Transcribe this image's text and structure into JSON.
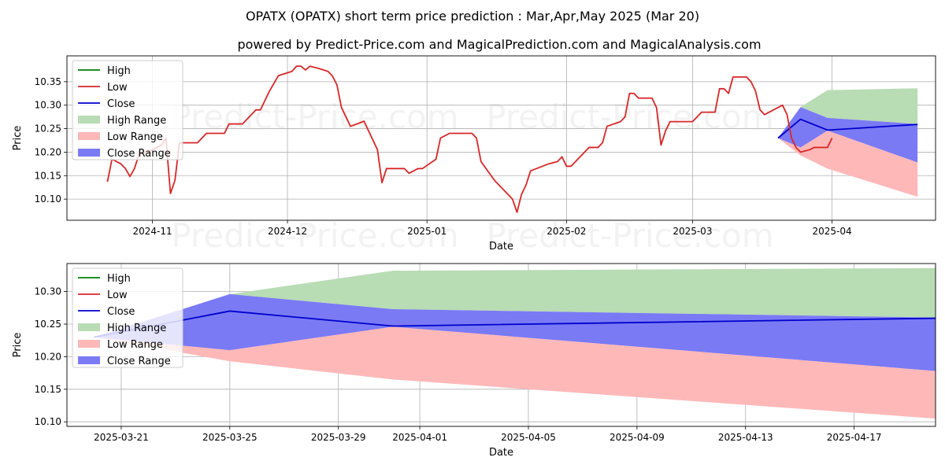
{
  "title": "OPATX (OPATX) short term price prediction : Mar,Apr,May 2025 (Mar 20)",
  "subtitle": "powered by Predict-Price.com and MagicalPrediction.com and MagicalAnalysis.com",
  "watermark": "Predict-Price.com",
  "colors": {
    "high": "#008000",
    "low": "#d62728",
    "close": "#0000cc",
    "high_range": "#b8dcb4",
    "low_range": "#ffb8b8",
    "close_range": "#7a7af5"
  },
  "chart_data": [
    {
      "type": "line",
      "xlabel": "Date",
      "ylabel": "Price",
      "xlim": [
        "2024-10-13",
        "2025-04-24"
      ],
      "ylim": [
        10.055,
        10.405
      ],
      "xticks": [
        "2024-11-01",
        "2024-12-01",
        "2025-01-01",
        "2025-02-01",
        "2025-03-01",
        "2025-04-01"
      ],
      "xtick_labels": [
        "2024-11",
        "2024-12",
        "2025-01",
        "2025-02",
        "2025-03",
        "2025-04"
      ],
      "yticks": [
        10.1,
        10.15,
        10.2,
        10.25,
        10.3,
        10.35
      ],
      "ytick_labels": [
        "10.10",
        "10.15",
        "10.20",
        "10.25",
        "10.30",
        "10.35"
      ],
      "grid": true,
      "legend_placement": "top-left",
      "legend": [
        "High",
        "Low",
        "Close",
        "High Range",
        "Low Range",
        "Close Range"
      ],
      "history_low": [
        [
          "2024-10-22",
          10.137
        ],
        [
          "2024-10-23",
          10.185
        ],
        [
          "2024-10-24",
          10.18
        ],
        [
          "2024-10-25",
          10.175
        ],
        [
          "2024-10-26",
          10.165
        ],
        [
          "2024-10-27",
          10.148
        ],
        [
          "2024-10-28",
          10.165
        ],
        [
          "2024-10-29",
          10.195
        ],
        [
          "2024-11-01",
          10.205
        ],
        [
          "2024-11-03",
          10.215
        ],
        [
          "2024-11-04",
          10.23
        ],
        [
          "2024-11-05",
          10.112
        ],
        [
          "2024-11-06",
          10.14
        ],
        [
          "2024-11-07",
          10.22
        ],
        [
          "2024-11-08",
          10.22
        ],
        [
          "2024-11-11",
          10.22
        ],
        [
          "2024-11-13",
          10.24
        ],
        [
          "2024-11-17",
          10.24
        ],
        [
          "2024-11-18",
          10.26
        ],
        [
          "2024-11-21",
          10.26
        ],
        [
          "2024-11-24",
          10.29
        ],
        [
          "2024-11-25",
          10.29
        ],
        [
          "2024-11-27",
          10.33
        ],
        [
          "2024-11-29",
          10.363
        ],
        [
          "2024-12-02",
          10.372
        ],
        [
          "2024-12-03",
          10.383
        ],
        [
          "2024-12-04",
          10.383
        ],
        [
          "2024-12-05",
          10.375
        ],
        [
          "2024-12-06",
          10.383
        ],
        [
          "2024-12-08",
          10.378
        ],
        [
          "2024-12-10",
          10.372
        ],
        [
          "2024-12-11",
          10.362
        ],
        [
          "2024-12-12",
          10.343
        ],
        [
          "2024-12-13",
          10.295
        ],
        [
          "2024-12-15",
          10.255
        ],
        [
          "2024-12-17",
          10.262
        ],
        [
          "2024-12-18",
          10.266
        ],
        [
          "2024-12-21",
          10.205
        ],
        [
          "2024-12-22",
          10.135
        ],
        [
          "2024-12-23",
          10.165
        ],
        [
          "2024-12-27",
          10.165
        ],
        [
          "2024-12-28",
          10.155
        ],
        [
          "2024-12-30",
          10.165
        ],
        [
          "2024-12-31",
          10.165
        ],
        [
          "2025-01-03",
          10.185
        ],
        [
          "2025-01-04",
          10.23
        ],
        [
          "2025-01-06",
          10.24
        ],
        [
          "2025-01-09",
          10.24
        ],
        [
          "2025-01-11",
          10.24
        ],
        [
          "2025-01-12",
          10.23
        ],
        [
          "2025-01-13",
          10.18
        ],
        [
          "2025-01-16",
          10.14
        ],
        [
          "2025-01-19",
          10.11
        ],
        [
          "2025-01-20",
          10.1
        ],
        [
          "2025-01-21",
          10.072
        ],
        [
          "2025-01-22",
          10.11
        ],
        [
          "2025-01-23",
          10.13
        ],
        [
          "2025-01-24",
          10.16
        ],
        [
          "2025-01-28",
          10.175
        ],
        [
          "2025-01-30",
          10.18
        ],
        [
          "2025-01-31",
          10.19
        ],
        [
          "2025-02-01",
          10.17
        ],
        [
          "2025-02-02",
          10.17
        ],
        [
          "2025-02-06",
          10.21
        ],
        [
          "2025-02-08",
          10.21
        ],
        [
          "2025-02-09",
          10.22
        ],
        [
          "2025-02-10",
          10.255
        ],
        [
          "2025-02-13",
          10.265
        ],
        [
          "2025-02-14",
          10.275
        ],
        [
          "2025-02-15",
          10.325
        ],
        [
          "2025-02-16",
          10.325
        ],
        [
          "2025-02-17",
          10.315
        ],
        [
          "2025-02-20",
          10.315
        ],
        [
          "2025-02-21",
          10.295
        ],
        [
          "2025-02-22",
          10.215
        ],
        [
          "2025-02-23",
          10.245
        ],
        [
          "2025-02-24",
          10.265
        ],
        [
          "2025-03-01",
          10.265
        ],
        [
          "2025-03-03",
          10.285
        ],
        [
          "2025-03-06",
          10.285
        ],
        [
          "2025-03-07",
          10.335
        ],
        [
          "2025-03-08",
          10.335
        ],
        [
          "2025-03-09",
          10.325
        ],
        [
          "2025-03-10",
          10.36
        ],
        [
          "2025-03-13",
          10.36
        ],
        [
          "2025-03-14",
          10.35
        ],
        [
          "2025-03-15",
          10.33
        ],
        [
          "2025-03-16",
          10.29
        ],
        [
          "2025-03-17",
          10.28
        ],
        [
          "2025-03-18",
          10.285
        ],
        [
          "2025-03-21",
          10.3
        ],
        [
          "2025-03-22",
          10.28
        ],
        [
          "2025-03-23",
          10.23
        ],
        [
          "2025-03-24",
          10.21
        ],
        [
          "2025-03-25",
          10.2
        ],
        [
          "2025-03-27",
          10.205
        ],
        [
          "2025-03-28",
          10.21
        ],
        [
          "2025-03-30",
          10.21
        ],
        [
          "2025-03-31",
          10.21
        ],
        [
          "2025-04-01",
          10.23
        ]
      ]
    },
    {
      "type": "area",
      "xlabel": "Date",
      "ylabel": "Price",
      "xlim": [
        "2025-03-19",
        "2025-04-20"
      ],
      "ylim": [
        10.093,
        10.343
      ],
      "xticks": [
        "2025-03-21",
        "2025-03-25",
        "2025-03-29",
        "2025-04-01",
        "2025-04-05",
        "2025-04-09",
        "2025-04-13",
        "2025-04-17"
      ],
      "xtick_labels": [
        "2025-03-21",
        "2025-03-25",
        "2025-03-29",
        "2025-04-01",
        "2025-04-05",
        "2025-04-09",
        "2025-04-13",
        "2025-04-17"
      ],
      "yticks": [
        10.1,
        10.15,
        10.2,
        10.25,
        10.3
      ],
      "ytick_labels": [
        "10.10",
        "10.15",
        "10.20",
        "10.25",
        "10.30"
      ],
      "grid": true,
      "legend_placement": "top-left",
      "legend": [
        "High",
        "Low",
        "Close",
        "High Range",
        "Low Range",
        "Close Range"
      ],
      "x": [
        "2025-03-20",
        "2025-03-25",
        "2025-03-31",
        "2025-04-20"
      ],
      "high_range_upper": [
        10.23,
        10.296,
        10.332,
        10.336
      ],
      "high_range_lower": [
        10.23,
        10.296,
        10.273,
        10.26
      ],
      "low_range_upper": [
        10.23,
        10.21,
        10.246,
        10.178
      ],
      "low_range_lower": [
        10.23,
        10.193,
        10.165,
        10.105
      ],
      "close_range_upper": [
        10.23,
        10.296,
        10.273,
        10.26
      ],
      "close_range_lower": [
        10.23,
        10.21,
        10.246,
        10.178
      ],
      "close": [
        10.23,
        10.27,
        10.247,
        10.259
      ]
    }
  ]
}
